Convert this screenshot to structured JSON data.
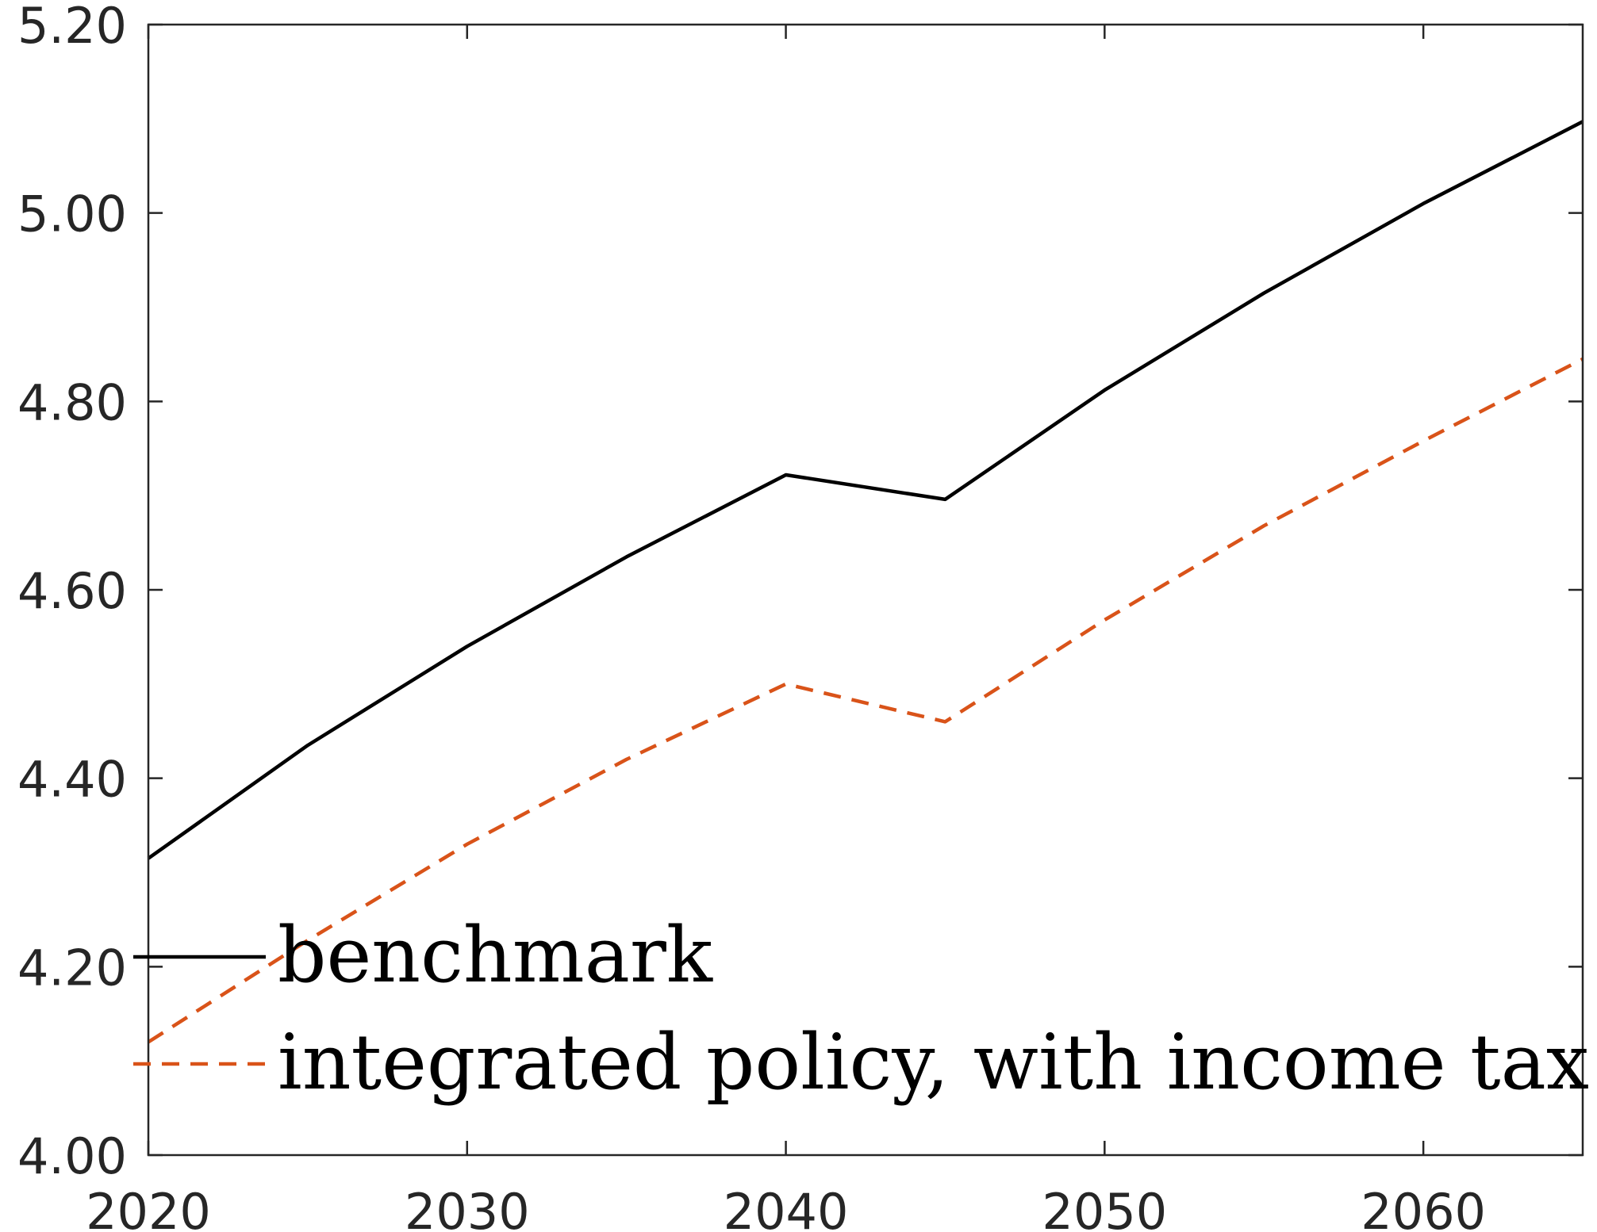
{
  "chart_data": {
    "type": "line",
    "x": [
      2020,
      2025,
      2030,
      2035,
      2040,
      2045,
      2050,
      2055,
      2060,
      2065
    ],
    "xlim": [
      2020,
      2065
    ],
    "ylim": [
      4.0,
      5.2
    ],
    "xticks": [
      2020,
      2030,
      2040,
      2050,
      2060
    ],
    "xtick_labels": [
      "2020",
      "2030",
      "2040",
      "2050",
      "2060"
    ],
    "yticks": [
      4.0,
      4.2,
      4.4,
      4.6,
      4.8,
      5.0,
      5.2
    ],
    "ytick_labels": [
      "4.00",
      "4.20",
      "4.40",
      "4.60",
      "4.80",
      "5.00",
      "5.20"
    ],
    "grid": false,
    "legend_position": "bottom-left",
    "series": [
      {
        "name": "benchmark",
        "color": "#000000",
        "style": "solid",
        "values": [
          4.315,
          4.435,
          4.54,
          4.635,
          4.722,
          4.696,
          4.812,
          4.915,
          5.01,
          5.097
        ]
      },
      {
        "name": "integrated policy, with income tax",
        "color": "#D95319",
        "style": "dashed",
        "values": [
          4.12,
          4.228,
          4.33,
          4.42,
          4.5,
          4.46,
          4.568,
          4.668,
          4.758,
          4.845
        ]
      }
    ]
  }
}
